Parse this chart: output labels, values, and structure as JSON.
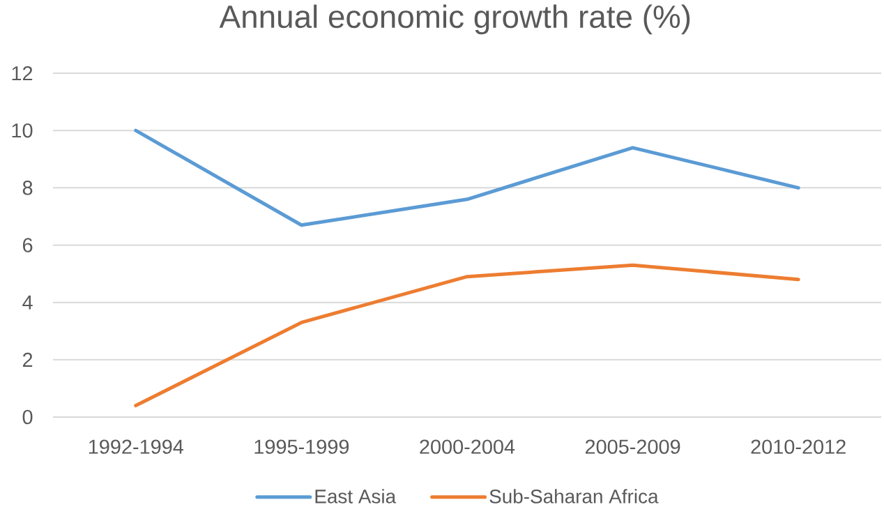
{
  "chart_data": {
    "type": "line",
    "title": "Annual economic growth rate (%)",
    "categories": [
      "1992-1994",
      "1995-1999",
      "2000-2004",
      "2005-2009",
      "2010-2012"
    ],
    "series": [
      {
        "name": "East Asia",
        "color": "#5b9bd5",
        "values": [
          10,
          6.7,
          7.6,
          9.4,
          8.0
        ]
      },
      {
        "name": "Sub-Saharan Africa",
        "color": "#ed7d31",
        "values": [
          0.4,
          3.3,
          4.9,
          5.3,
          4.8
        ]
      }
    ],
    "ylim": [
      0,
      12
    ],
    "yticks": [
      0,
      2,
      4,
      6,
      8,
      10,
      12
    ],
    "grid": "y",
    "legend": "bottom",
    "marker": "none",
    "line_style": "solid"
  }
}
